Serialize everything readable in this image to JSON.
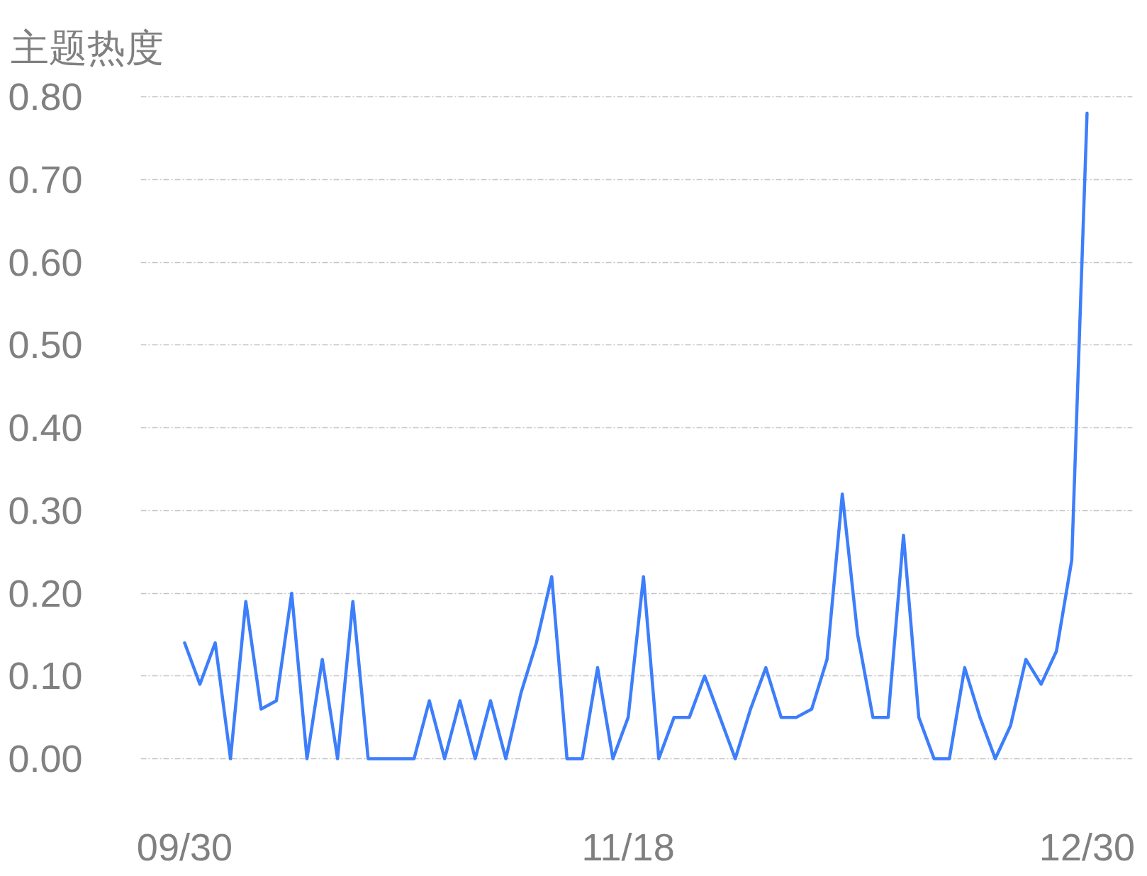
{
  "chart_data": {
    "type": "line",
    "title": "主题热度",
    "categories": [
      "09/30",
      null,
      null,
      null,
      null,
      null,
      null,
      null,
      null,
      null,
      null,
      null,
      null,
      null,
      null,
      null,
      null,
      null,
      null,
      null,
      null,
      null,
      null,
      null,
      null,
      null,
      null,
      null,
      null,
      "11/18",
      null,
      null,
      null,
      null,
      null,
      null,
      null,
      null,
      null,
      null,
      null,
      null,
      null,
      null,
      null,
      null,
      null,
      null,
      null,
      null,
      null,
      null,
      null,
      null,
      null,
      null,
      null,
      null,
      null,
      "12/30"
    ],
    "series": [
      {
        "color": "#3d7efb",
        "values": [
          0.14,
          0.09,
          0.14,
          0,
          0.19,
          0.06,
          0.07,
          0.2,
          0,
          0.12,
          0,
          0.19,
          0,
          0,
          0,
          0,
          0.07,
          0,
          0.07,
          0,
          0.07,
          0,
          0.08,
          0.14,
          0.22,
          0,
          0,
          0.11,
          0,
          0.05,
          0.22,
          0,
          0.05,
          0.05,
          0.1,
          0.05,
          0,
          0.06,
          0.11,
          0.05,
          0.05,
          0.06,
          0.12,
          0.32,
          0.15,
          0.05,
          0.05,
          0.27,
          0.05,
          0,
          0,
          0.11,
          0.05,
          0,
          0.04,
          0.12,
          0.09,
          0.13,
          0.24,
          0.78
        ]
      }
    ],
    "ylim": [
      0,
      0.8
    ],
    "yticks": [
      {
        "value": 0,
        "label": "0.00"
      },
      {
        "value": 0.1,
        "label": "0.10"
      },
      {
        "value": 0.2,
        "label": "0.20"
      },
      {
        "value": 0.3,
        "label": "0.30"
      },
      {
        "value": 0.4,
        "label": "0.40"
      },
      {
        "value": 0.5,
        "label": "0.50"
      },
      {
        "value": 0.6,
        "label": "0.60"
      },
      {
        "value": 0.7,
        "label": "0.70"
      },
      {
        "value": 0.8,
        "label": "0.80"
      }
    ],
    "grid": "y",
    "line_style": "solid"
  }
}
